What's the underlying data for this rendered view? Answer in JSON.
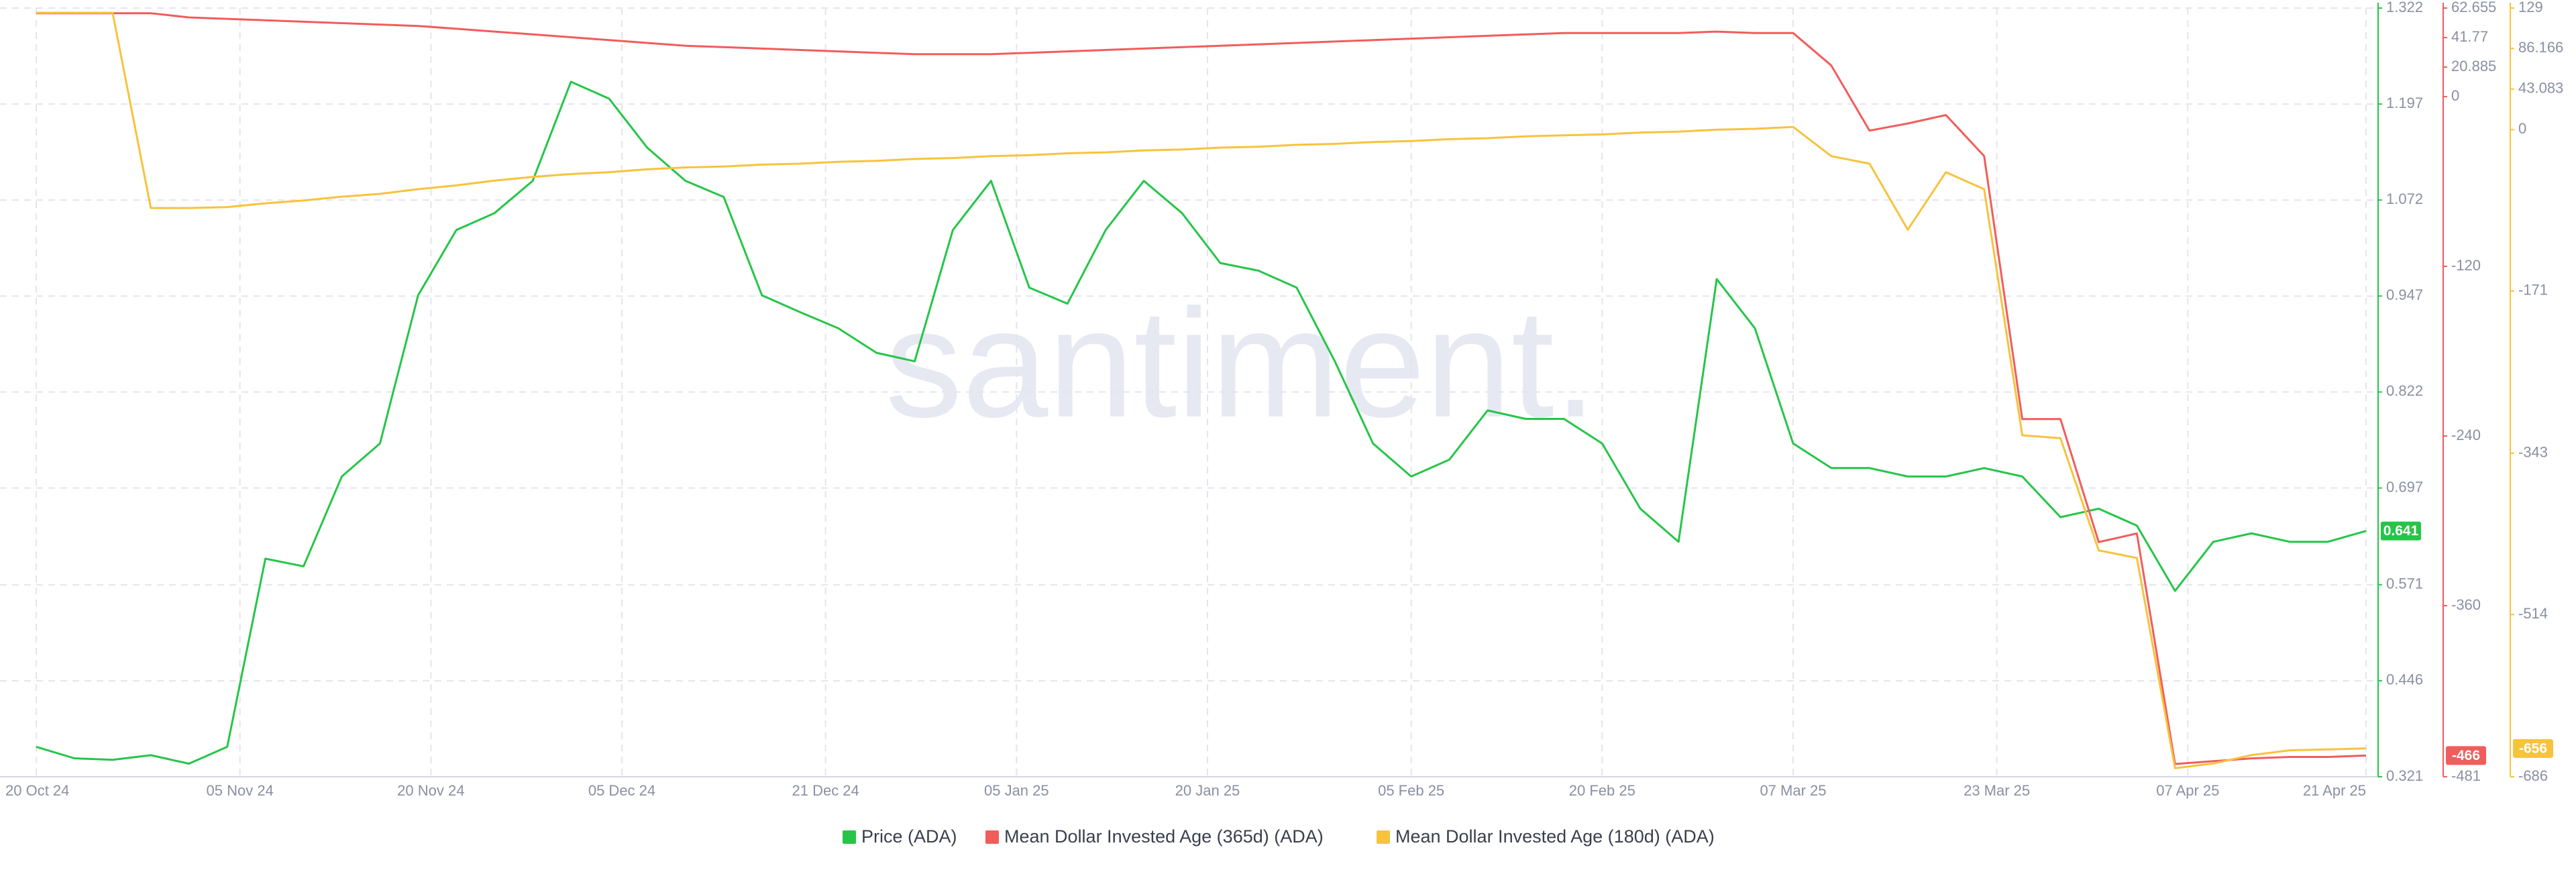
{
  "chart_data": {
    "type": "line",
    "watermark": "santiment.",
    "x": [
      "2024-10-20",
      "2024-10-23",
      "2024-10-26",
      "2024-10-29",
      "2024-11-01",
      "2024-11-04",
      "2024-11-07",
      "2024-11-10",
      "2024-11-13",
      "2024-11-16",
      "2024-11-19",
      "2024-11-22",
      "2024-11-25",
      "2024-11-28",
      "2024-12-01",
      "2024-12-04",
      "2024-12-07",
      "2024-12-10",
      "2024-12-13",
      "2024-12-16",
      "2024-12-19",
      "2024-12-22",
      "2024-12-25",
      "2024-12-28",
      "2024-12-31",
      "2025-01-03",
      "2025-01-06",
      "2025-01-09",
      "2025-01-12",
      "2025-01-15",
      "2025-01-18",
      "2025-01-21",
      "2025-01-24",
      "2025-01-27",
      "2025-01-30",
      "2025-02-02",
      "2025-02-05",
      "2025-02-08",
      "2025-02-11",
      "2025-02-14",
      "2025-02-17",
      "2025-02-20",
      "2025-02-23",
      "2025-02-26",
      "2025-03-01",
      "2025-03-04",
      "2025-03-07",
      "2025-03-10",
      "2025-03-13",
      "2025-03-16",
      "2025-03-19",
      "2025-03-22",
      "2025-03-25",
      "2025-03-28",
      "2025-03-31",
      "2025-04-03",
      "2025-04-06",
      "2025-04-09",
      "2025-04-12",
      "2025-04-15",
      "2025-04-18",
      "2025-04-21"
    ],
    "xlim": [
      "2024-10-20",
      "2025-04-21"
    ],
    "xticks": [
      {
        "value": "2024-10-20",
        "label": "20 Oct 24"
      },
      {
        "value": "2024-11-05",
        "label": "05 Nov 24"
      },
      {
        "value": "2024-11-20",
        "label": "20 Nov 24"
      },
      {
        "value": "2024-12-05",
        "label": "05 Dec 24"
      },
      {
        "value": "2024-12-21",
        "label": "21 Dec 24"
      },
      {
        "value": "2025-01-05",
        "label": "05 Jan 25"
      },
      {
        "value": "2025-01-20",
        "label": "20 Jan 25"
      },
      {
        "value": "2025-02-05",
        "label": "05 Feb 25"
      },
      {
        "value": "2025-02-20",
        "label": "20 Feb 25"
      },
      {
        "value": "2025-03-07",
        "label": "07 Mar 25"
      },
      {
        "value": "2025-03-23",
        "label": "23 Mar 25"
      },
      {
        "value": "2025-04-07",
        "label": "07 Apr 25"
      },
      {
        "value": "2025-04-21",
        "label": "21 Apr 25"
      }
    ],
    "ylim": [
      0.321,
      1.322
    ],
    "yticks": [
      1.322,
      1.197,
      1.072,
      0.947,
      0.822,
      0.697,
      0.571,
      0.446,
      0.321
    ],
    "y2lim": [
      -481,
      62.655
    ],
    "y2ticks": [
      62.655,
      41.77,
      20.885,
      0,
      -120,
      -240,
      -360,
      -481
    ],
    "y3lim": [
      -686,
      129
    ],
    "y3ticks": [
      129,
      86.166,
      43.083,
      0,
      -171,
      -343,
      -514,
      -686
    ],
    "grid": true,
    "series": [
      {
        "name": "Price (ADA)",
        "color": "#26c548",
        "axis": "y",
        "values": [
          0.36,
          0.345,
          0.343,
          0.349,
          0.338,
          0.36,
          0.605,
          0.595,
          0.712,
          0.755,
          0.948,
          1.033,
          1.055,
          1.097,
          1.226,
          1.204,
          1.14,
          1.097,
          1.076,
          0.948,
          0.926,
          0.905,
          0.873,
          0.862,
          1.033,
          1.097,
          0.958,
          0.937,
          1.033,
          1.097,
          1.055,
          0.99,
          0.98,
          0.958,
          0.862,
          0.755,
          0.712,
          0.734,
          0.798,
          0.787,
          0.787,
          0.755,
          0.67,
          0.627,
          0.969,
          0.905,
          0.755,
          0.723,
          0.723,
          0.712,
          0.712,
          0.723,
          0.712,
          0.659,
          0.67,
          0.648,
          0.563,
          0.627,
          0.638,
          0.627,
          0.627,
          0.641
        ]
      },
      {
        "name": "Mean Dollar Invested Age (365d) (ADA)",
        "color": "#f25c5c",
        "axis": "y2",
        "values": [
          59,
          59,
          59,
          59,
          56,
          55,
          54,
          53,
          52,
          51,
          50,
          48,
          46,
          44,
          42,
          40,
          38,
          36,
          35,
          34,
          33,
          32,
          31,
          30,
          30,
          30,
          31,
          32,
          33,
          34,
          35,
          36,
          37,
          38,
          39,
          40,
          41,
          42,
          43,
          44,
          45,
          45,
          45,
          45,
          46,
          45,
          45,
          22,
          -24,
          -19,
          -13,
          -42,
          -228,
          -228,
          -315,
          -309,
          -472,
          -470,
          -468,
          -467,
          -467,
          -466
        ]
      },
      {
        "name": "Mean Dollar Invested Age (180d) (ADA)",
        "color": "#f7c33c",
        "axis": "y3",
        "values": [
          124,
          124,
          124,
          -83,
          -83,
          -82,
          -78,
          -75,
          -71,
          -68,
          -63,
          -59,
          -54,
          -50,
          -47,
          -45,
          -42,
          -40,
          -39,
          -37,
          -36,
          -34,
          -33,
          -31,
          -30,
          -28,
          -27,
          -25,
          -24,
          -22,
          -21,
          -19,
          -18,
          -16,
          -15,
          -13,
          -12,
          -10,
          -9,
          -7,
          -6,
          -5,
          -3,
          -2,
          0,
          1,
          3,
          -28,
          -36,
          -106,
          -45,
          -63,
          -324,
          -327,
          -446,
          -454,
          -677,
          -672,
          -663,
          -658,
          -657,
          -656
        ]
      }
    ]
  }
}
